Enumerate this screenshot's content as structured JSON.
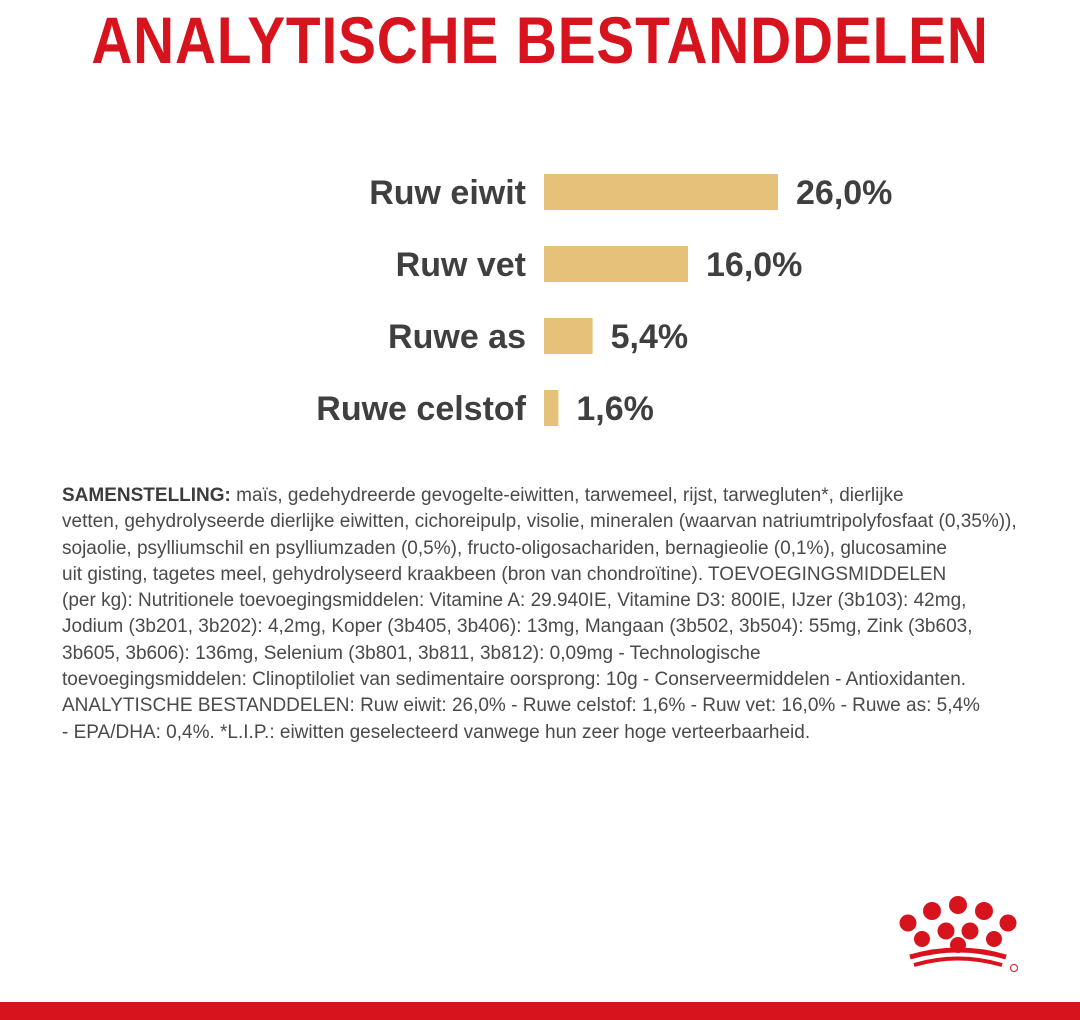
{
  "title": "ANALYTISCHE BESTANDDELEN",
  "colors": {
    "brand_red": "#d7141e",
    "bar_fill": "#e6c17a",
    "text_dark": "#3f3f3f"
  },
  "chart_data": {
    "type": "bar",
    "orientation": "horizontal",
    "categories": [
      "Ruw eiwit",
      "Ruw vet",
      "Ruwe as",
      "Ruwe celstof"
    ],
    "values": [
      26.0,
      16.0,
      5.4,
      1.6
    ],
    "value_labels": [
      "26,0%",
      "16,0%",
      "5,4%",
      "1,6%"
    ],
    "unit": "%"
  },
  "composition": {
    "title": "SAMENSTELLING:",
    "lines": [
      " maïs, gedehydreerde gevogelte-eiwitten, tarwemeel, rijst, tarwegluten*, dierlijke",
      "vetten, gehydrolyseerde dierlijke eiwitten, cichoreipulp, visolie, mineralen (waarvan natriumtripolyfosfaat (0,35%)),",
      "sojaolie, psylliumschil en psylliumzaden (0,5%), fructo-oligosachariden, bernagieolie (0,1%), glucosamine",
      "uit gisting, tagetes meel, gehydrolyseerd kraakbeen (bron van chondroïtine). TOEVOEGINGSMIDDELEN",
      "(per  kg): Nutritionele toevoegingsmiddelen: Vitamine A: 29.940IE, Vitamine D3: 800IE, IJzer (3b103): 42mg,",
      "Jodium (3b201, 3b202): 4,2mg, Koper (3b405, 3b406): 13mg, Mangaan (3b502, 3b504): 55mg, Zink (3b603,",
      "3b605, 3b606): 136mg, Selenium (3b801, 3b811, 3b812): 0,09mg - Technologische",
      "toevoegingsmiddelen: Clinoptiloliet van sedimentaire oorsprong: 10g - Conserveermiddelen - Antioxidanten.",
      "ANALYTISCHE BESTANDDELEN: Ruw eiwit: 26,0% - Ruwe celstof: 1,6% - Ruw vet: 16,0% - Ruwe as: 5,4%",
      " - EPA/DHA: 0,4%. *L.I.P.: eiwitten geselecteerd vanwege hun zeer hoge verteerbaarheid."
    ]
  }
}
